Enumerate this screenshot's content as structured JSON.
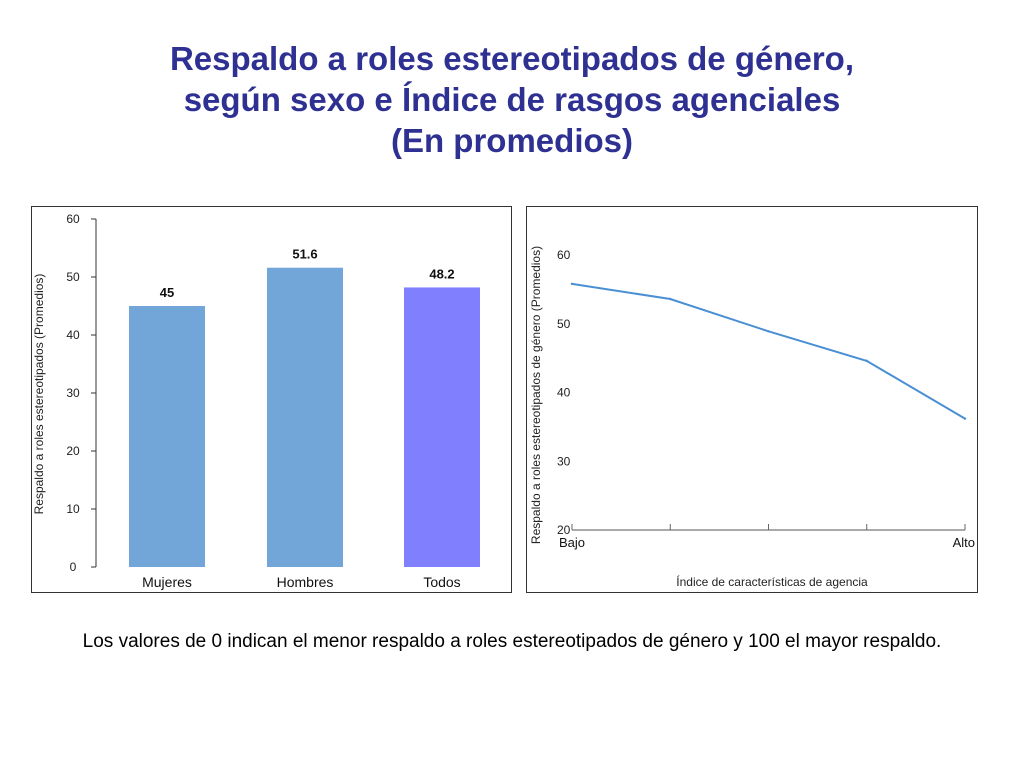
{
  "title": {
    "line1": "Respaldo a roles estereotipados de género,",
    "line2": "según sexo e Índice de rasgos agenciales",
    "line3": "(En promedios)"
  },
  "footnote": "Los valores de 0 indican el menor respaldo a roles estereotipados de género y 100 el mayor respaldo.",
  "colors": {
    "title": "#2e3192",
    "bar_blue": "#72a6d8",
    "bar_purple": "#8080ff",
    "line": "#4a8fd4"
  },
  "chart_data": [
    {
      "type": "bar",
      "title": "",
      "categories": [
        "Mujeres",
        "Hombres",
        "Todos"
      ],
      "values": [
        45,
        51.6,
        48.2
      ],
      "value_labels": [
        "45",
        "51.6",
        "48.2"
      ],
      "bar_colors": [
        "#72a6d8",
        "#72a6d8",
        "#8080ff"
      ],
      "xlabel": "",
      "ylabel": "Respaldo a roles estereotipados (Promedios)",
      "ylim": [
        0,
        60
      ],
      "yticks": [
        "0",
        "10",
        "20",
        "30",
        "40",
        "50",
        "60"
      ],
      "grid": false
    },
    {
      "type": "line",
      "title": "",
      "x": [
        0,
        1,
        2,
        3,
        4
      ],
      "values": [
        55.8,
        53.6,
        48.9,
        44.6,
        36.2
      ],
      "xtick_labels": [
        "Bajo",
        "",
        "",
        "",
        "Alto"
      ],
      "xlabel": "Índice de características de agencia",
      "ylabel": "Respaldo a roles estereotipados de género (Promedios)",
      "ylim": [
        20,
        60
      ],
      "yticks": [
        "20",
        "30",
        "40",
        "50",
        "60"
      ],
      "grid": false
    }
  ]
}
